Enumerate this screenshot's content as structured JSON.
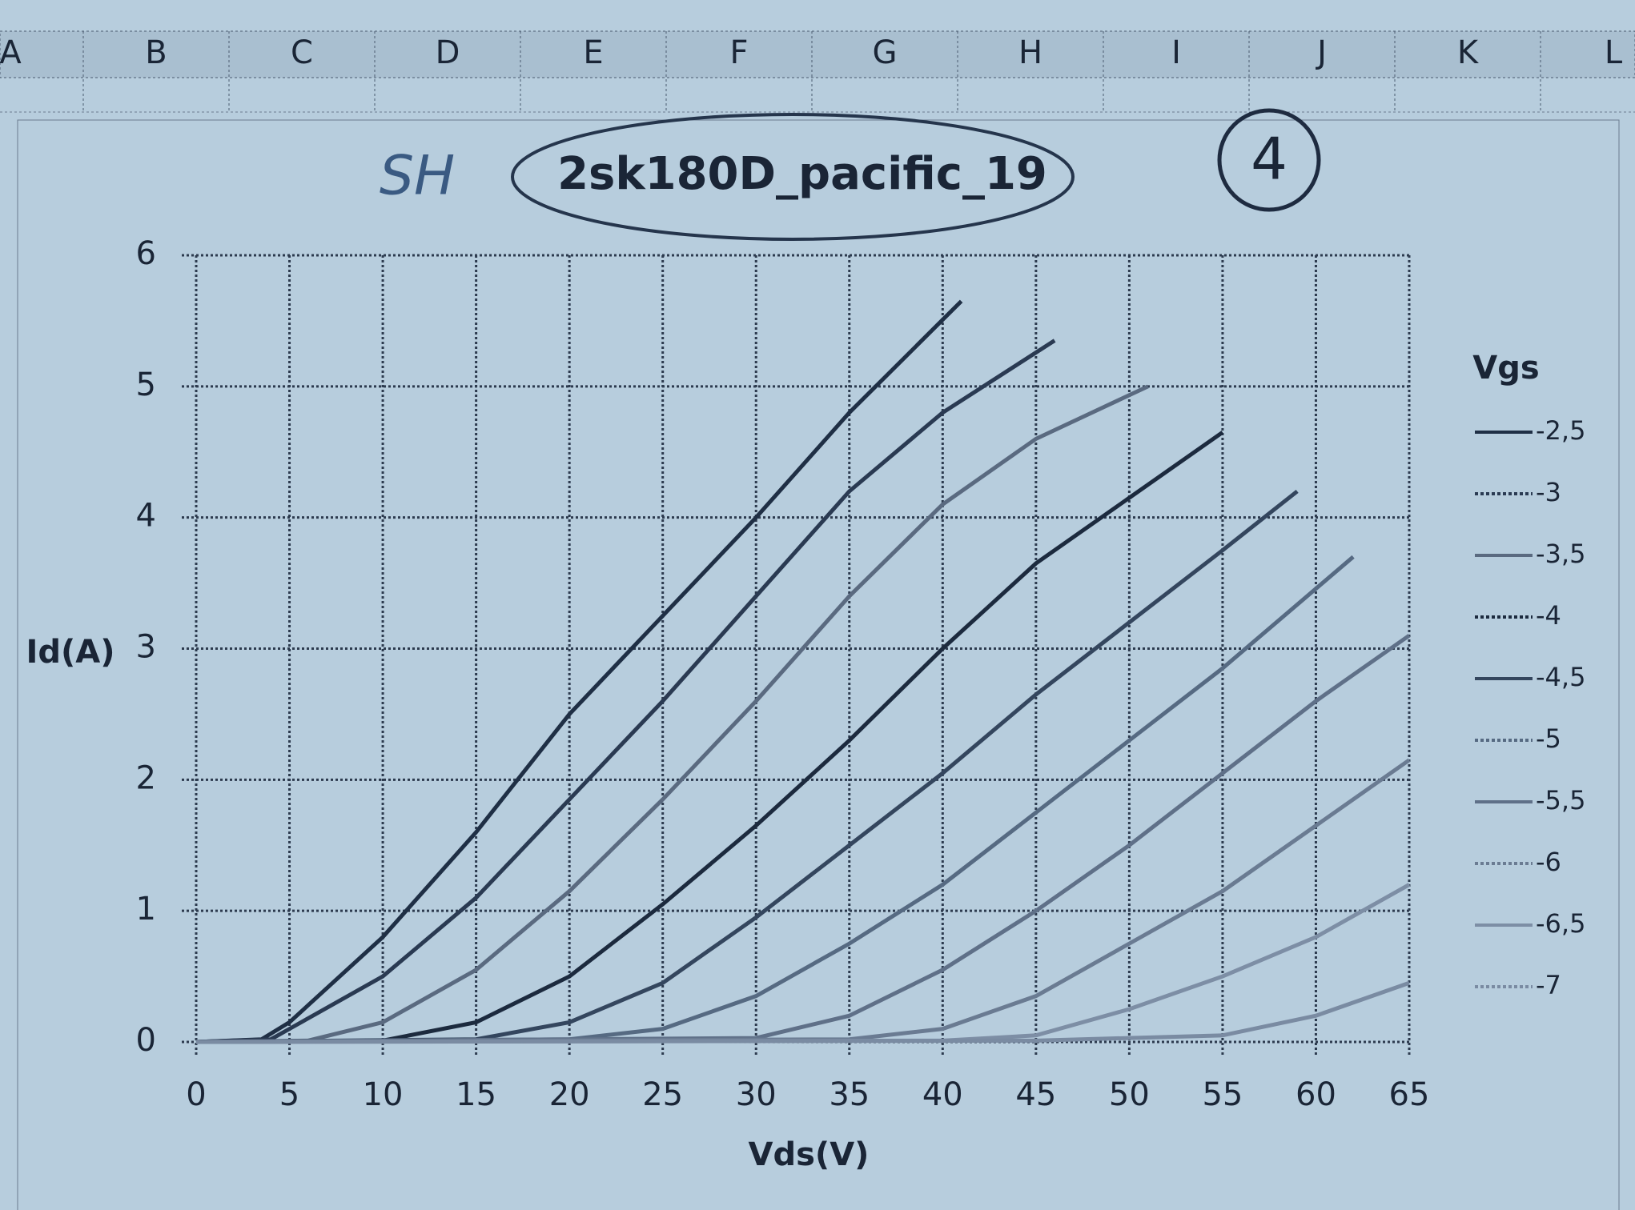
{
  "sheet_columns": [
    "A",
    "B",
    "C",
    "D",
    "E",
    "F",
    "G",
    "H",
    "I",
    "J",
    "K",
    "L"
  ],
  "annotations": [
    "SH",
    "4"
  ],
  "chart_data": {
    "type": "line",
    "title": "2sk180D_pacific_19",
    "x_label": "Vds(V)",
    "y_label": "Id(A)",
    "legend_title": "Vgs",
    "legend_position": "right",
    "grid": true,
    "xlim": [
      0,
      65
    ],
    "ylim": [
      0,
      6
    ],
    "xticks": [
      0,
      5,
      10,
      15,
      20,
      25,
      30,
      35,
      40,
      45,
      50,
      55,
      60,
      65
    ],
    "yticks": [
      0,
      1,
      2,
      3,
      4,
      5,
      6
    ],
    "series": [
      {
        "name": "-2,5",
        "color": "#1f2f45",
        "x": [
          0,
          3.5,
          5,
          10,
          15,
          20,
          25,
          30,
          35,
          41
        ],
        "values": [
          0,
          0.02,
          0.15,
          0.8,
          1.6,
          2.5,
          3.25,
          4.0,
          4.8,
          5.65
        ]
      },
      {
        "name": "-3",
        "color": "#2a3a52",
        "x": [
          0,
          4,
          5,
          10,
          15,
          20,
          25,
          30,
          35,
          40,
          46
        ],
        "values": [
          0,
          0.02,
          0.1,
          0.5,
          1.1,
          1.85,
          2.6,
          3.4,
          4.2,
          4.8,
          5.35
        ]
      },
      {
        "name": "-3,5",
        "color": "#5a6a80",
        "x": [
          0,
          6,
          10,
          15,
          20,
          25,
          30,
          35,
          40,
          45,
          51
        ],
        "values": [
          0,
          0.01,
          0.15,
          0.55,
          1.15,
          1.85,
          2.6,
          3.4,
          4.1,
          4.6,
          5.0
        ]
      },
      {
        "name": "-4",
        "color": "#1c2a3e",
        "x": [
          0,
          10,
          15,
          20,
          25,
          30,
          35,
          40,
          45,
          50,
          55
        ],
        "values": [
          0,
          0.01,
          0.15,
          0.5,
          1.05,
          1.65,
          2.3,
          3.0,
          3.65,
          4.15,
          4.65
        ]
      },
      {
        "name": "-4,5",
        "color": "#34465e",
        "x": [
          0,
          15,
          20,
          25,
          30,
          35,
          40,
          45,
          50,
          55,
          59
        ],
        "values": [
          0,
          0.02,
          0.15,
          0.45,
          0.95,
          1.5,
          2.05,
          2.65,
          3.2,
          3.75,
          4.2
        ]
      },
      {
        "name": "-5",
        "color": "#566a82",
        "x": [
          0,
          20,
          25,
          30,
          35,
          40,
          45,
          50,
          55,
          62
        ],
        "values": [
          0,
          0.02,
          0.1,
          0.35,
          0.75,
          1.2,
          1.75,
          2.3,
          2.85,
          3.7
        ]
      },
      {
        "name": "-5,5",
        "color": "#5f7088",
        "x": [
          0,
          30,
          35,
          40,
          45,
          50,
          55,
          60,
          65
        ],
        "values": [
          0,
          0.03,
          0.2,
          0.55,
          1.0,
          1.5,
          2.05,
          2.6,
          3.1
        ]
      },
      {
        "name": "-6",
        "color": "#6a7b92",
        "x": [
          0,
          35,
          40,
          45,
          50,
          55,
          60,
          65
        ],
        "values": [
          0,
          0.02,
          0.1,
          0.35,
          0.75,
          1.15,
          1.65,
          2.15
        ]
      },
      {
        "name": "-6,5",
        "color": "#7d8ea5",
        "x": [
          0,
          40,
          45,
          50,
          55,
          60,
          65
        ],
        "values": [
          0,
          0.01,
          0.05,
          0.25,
          0.5,
          0.8,
          1.2
        ]
      },
      {
        "name": "-7",
        "color": "#7a8ba2",
        "x": [
          0,
          45,
          55,
          60,
          65
        ],
        "values": [
          0,
          0.01,
          0.05,
          0.2,
          0.45
        ]
      }
    ]
  }
}
